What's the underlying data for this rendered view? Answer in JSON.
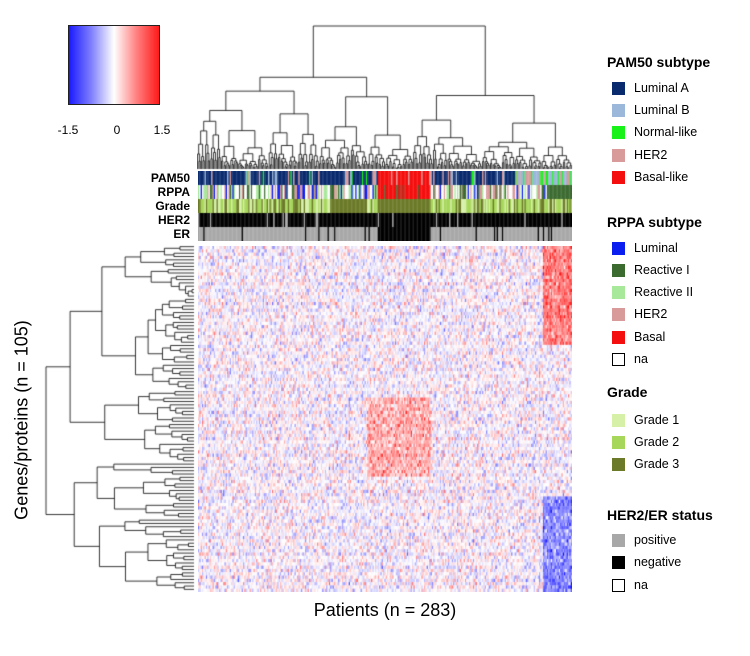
{
  "chart_data": {
    "type": "heatmap",
    "xlabel": "Patients (n = 283)",
    "ylabel": "Genes/proteins (n = 105)",
    "n_rows": 105,
    "n_cols": 283,
    "color_scale": {
      "min": -1.5,
      "max": 1.5,
      "colors": [
        "#1a1aff",
        "#ffffff",
        "#ff1a1a"
      ],
      "tick_labels": [
        "-1.5",
        "0",
        "1.5"
      ]
    },
    "row_dendrogram": true,
    "col_dendrogram": true,
    "annotation_tracks": [
      "PAM50",
      "RPPA",
      "Grade",
      "HER2",
      "ER"
    ]
  },
  "legends": [
    {
      "title": "PAM50 subtype",
      "items": [
        {
          "label": "Luminal A",
          "color": "#0a2a6e"
        },
        {
          "label": "Luminal B",
          "color": "#9bb7d9"
        },
        {
          "label": "Normal-like",
          "color": "#19f219"
        },
        {
          "label": "HER2",
          "color": "#d99a9a"
        },
        {
          "label": "Basal-like",
          "color": "#f50e0e"
        }
      ]
    },
    {
      "title": "RPPA subtype",
      "items": [
        {
          "label": "Luminal",
          "color": "#0b1ef0"
        },
        {
          "label": "Reactive I",
          "color": "#3c6b30"
        },
        {
          "label": "Reactive II",
          "color": "#a8e89a"
        },
        {
          "label": "HER2",
          "color": "#d99a9a"
        },
        {
          "label": "Basal",
          "color": "#f50e0e"
        },
        {
          "label": "na",
          "color": "#ffffff"
        }
      ]
    },
    {
      "title": "Grade",
      "items": [
        {
          "label": "Grade 1",
          "color": "#d6f0a8"
        },
        {
          "label": "Grade 2",
          "color": "#a6d65a"
        },
        {
          "label": "Grade 3",
          "color": "#6b7a28"
        }
      ]
    },
    {
      "title": "HER2/ER status",
      "items": [
        {
          "label": "positive",
          "color": "#a8a8a8"
        },
        {
          "label": "negative",
          "color": "#000000"
        },
        {
          "label": "na",
          "color": "#ffffff"
        }
      ]
    }
  ]
}
